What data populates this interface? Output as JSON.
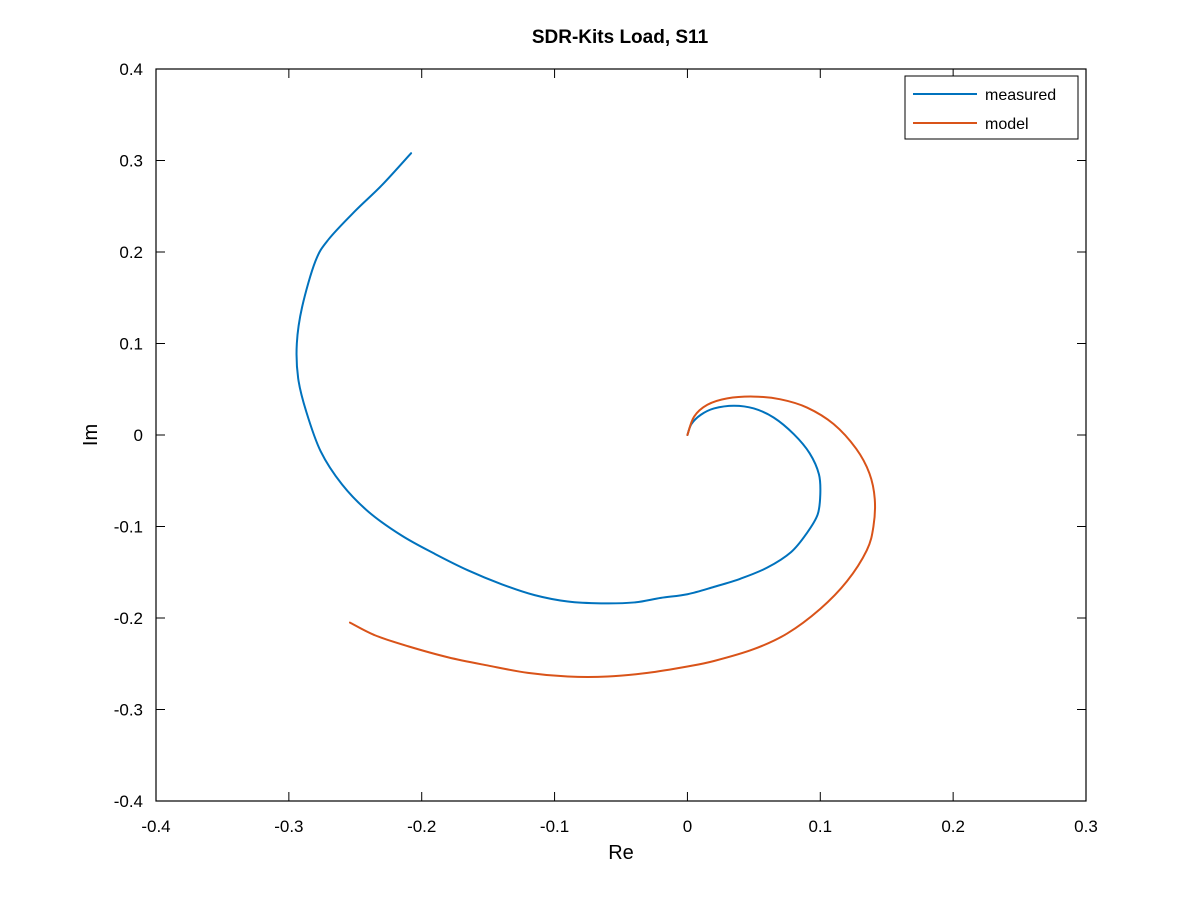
{
  "chart_data": {
    "type": "line",
    "title": "SDR-Kits Load, S11",
    "xlabel": "Re",
    "ylabel": "Im",
    "xlim": [
      -0.4,
      0.3
    ],
    "ylim": [
      -0.4,
      0.4
    ],
    "xticks": [
      -0.4,
      -0.3,
      -0.2,
      -0.1,
      0,
      0.1,
      0.2,
      0.3
    ],
    "yticks": [
      -0.4,
      -0.3,
      -0.2,
      -0.1,
      0,
      0.1,
      0.2,
      0.3,
      0.4
    ],
    "xtick_labels": [
      "-0.4",
      "-0.3",
      "-0.2",
      "-0.1",
      "0",
      "0.1",
      "0.2",
      "0.3"
    ],
    "ytick_labels": [
      "-0.4",
      "-0.3",
      "-0.2",
      "-0.1",
      "0",
      "0.1",
      "0.2",
      "0.3",
      "0.4"
    ],
    "grid": false,
    "legend_position": "top-right",
    "series": [
      {
        "name": "measured",
        "color": "#0072BD",
        "x": [
          0.0,
          0.003,
          0.01,
          0.02,
          0.035,
          0.05,
          0.065,
          0.08,
          0.092,
          0.099,
          0.1,
          0.098,
          0.09,
          0.078,
          0.06,
          0.04,
          0.02,
          0.0,
          -0.02,
          -0.04,
          -0.065,
          -0.09,
          -0.115,
          -0.14,
          -0.165,
          -0.19,
          -0.215,
          -0.24,
          -0.26,
          -0.276,
          -0.287,
          -0.293,
          -0.294,
          -0.29,
          -0.28,
          -0.27,
          -0.25,
          -0.23,
          -0.208
        ],
        "y": [
          0.0,
          0.012,
          0.022,
          0.029,
          0.032,
          0.029,
          0.019,
          0.001,
          -0.02,
          -0.043,
          -0.065,
          -0.087,
          -0.107,
          -0.128,
          -0.145,
          -0.157,
          -0.166,
          -0.174,
          -0.178,
          -0.183,
          -0.184,
          -0.182,
          -0.175,
          -0.163,
          -0.148,
          -0.13,
          -0.11,
          -0.084,
          -0.054,
          -0.018,
          0.026,
          0.062,
          0.1,
          0.14,
          0.19,
          0.214,
          0.245,
          0.273,
          0.308
        ]
      },
      {
        "name": "model",
        "color": "#D95319",
        "x": [
          0.0,
          0.005,
          0.015,
          0.03,
          0.05,
          0.07,
          0.09,
          0.11,
          0.127,
          0.137,
          0.141,
          0.14,
          0.135,
          0.12,
          0.1,
          0.075,
          0.05,
          0.02,
          0.0,
          -0.03,
          -0.06,
          -0.09,
          -0.12,
          -0.15,
          -0.18,
          -0.21,
          -0.235,
          -0.254
        ],
        "y": [
          0.0,
          0.02,
          0.033,
          0.04,
          0.042,
          0.039,
          0.03,
          0.012,
          -0.015,
          -0.042,
          -0.07,
          -0.1,
          -0.126,
          -0.16,
          -0.19,
          -0.217,
          -0.234,
          -0.247,
          -0.253,
          -0.26,
          -0.264,
          -0.264,
          -0.26,
          -0.252,
          -0.243,
          -0.231,
          -0.219,
          -0.205
        ]
      }
    ]
  }
}
